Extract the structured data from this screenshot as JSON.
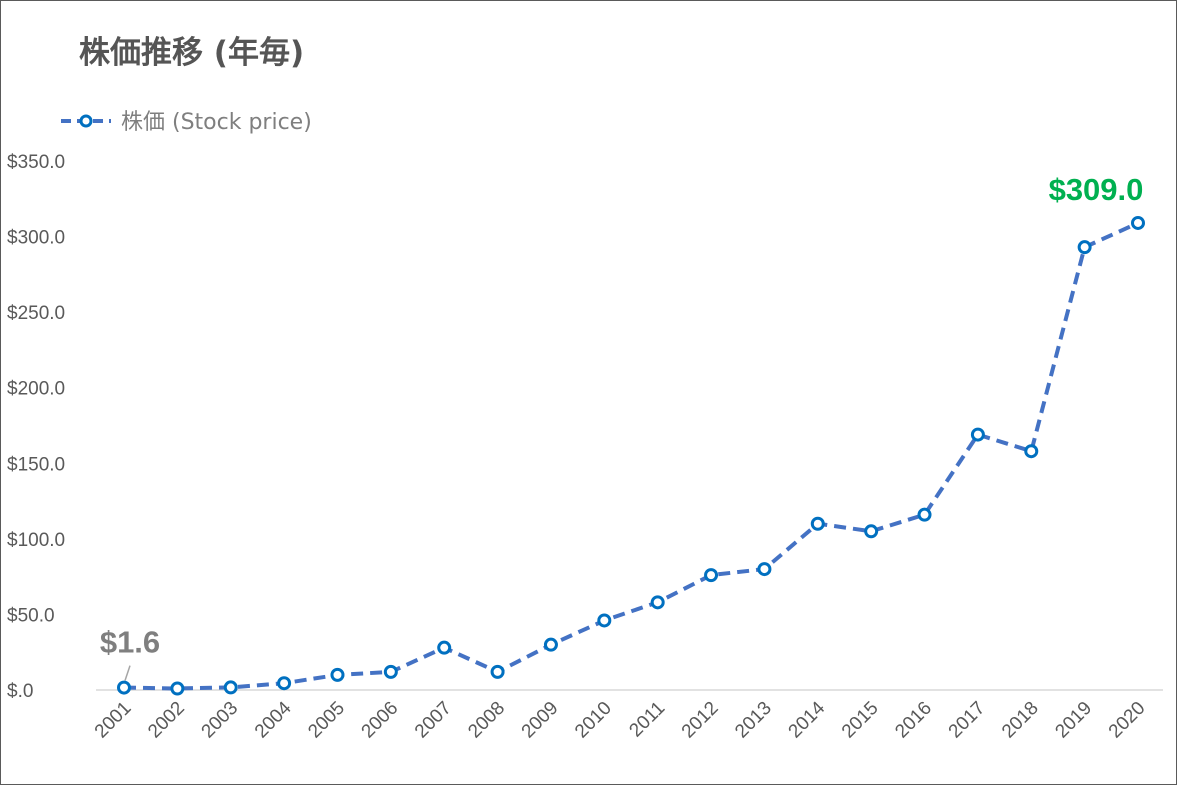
{
  "chart_data": {
    "type": "line",
    "title": "株価推移 (年毎)",
    "xlabel": "",
    "ylabel": "",
    "categories": [
      "2001",
      "2002",
      "2003",
      "2004",
      "2005",
      "2006",
      "2007",
      "2008",
      "2009",
      "2010",
      "2011",
      "2012",
      "2013",
      "2014",
      "2015",
      "2016",
      "2017",
      "2018",
      "2019",
      "2020"
    ],
    "series": [
      {
        "name": "株価 (Stock price)",
        "values": [
          1.6,
          1.0,
          1.7,
          4.5,
          10.0,
          12.0,
          28.0,
          12.0,
          30.0,
          46.0,
          58.0,
          76.0,
          80.0,
          110.0,
          105.0,
          116.0,
          169.0,
          158.0,
          293.0,
          309.0
        ],
        "color": "#4472c4",
        "marker_color": "#0070c0",
        "line_style": "dashed",
        "marker": "hollow-circle"
      }
    ],
    "ylim": [
      0,
      350
    ],
    "yticks": [
      0,
      50,
      100,
      150,
      200,
      250,
      300,
      350
    ],
    "ytick_labels": [
      "$.0",
      "$50.0",
      "$100.0",
      "$150.0",
      "$200.0",
      "$250.0",
      "$300.0",
      "$350.0"
    ],
    "grid": false,
    "legend_position": "top-left",
    "annotations": [
      {
        "category": "2001",
        "text": "$1.6",
        "color": "#7f7f7f"
      },
      {
        "category": "2020",
        "text": "$309.0",
        "color": "#00b050"
      }
    ]
  }
}
